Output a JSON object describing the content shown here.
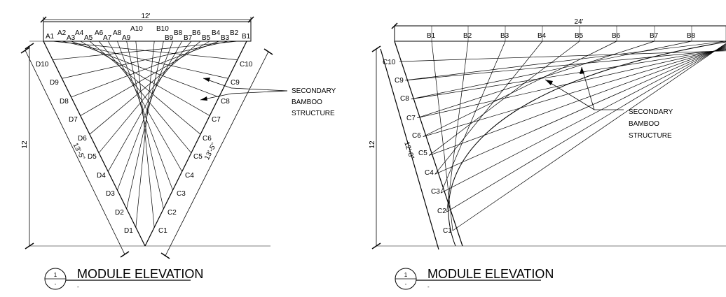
{
  "left": {
    "dim_top": "12'",
    "dim_side": "12",
    "dim_diag_left": "13'-5\"",
    "dim_diag_right": "13'-5\"",
    "a_labels": [
      "A1",
      "A2",
      "A3",
      "A4",
      "A5",
      "A6",
      "A7",
      "A8",
      "A9",
      "A10"
    ],
    "b_labels": [
      "B1",
      "B2",
      "B3",
      "B4",
      "B5",
      "B6",
      "B7",
      "B8",
      "B9",
      "B10"
    ],
    "c_labels": [
      "C1",
      "C2",
      "C3",
      "C4",
      "C5",
      "C6",
      "C7",
      "C8",
      "C9",
      "C10"
    ],
    "d_labels": [
      "D1",
      "D2",
      "D3",
      "D4",
      "D5",
      "D6",
      "D7",
      "D8",
      "D9",
      "D10"
    ],
    "callout": [
      "SECONDARY",
      "BAMBOO",
      "STRUCTURE"
    ],
    "title": "MODULE ELEVATION",
    "title_num": "1",
    "title_sub": "-",
    "title_scale": "-"
  },
  "right": {
    "dim_top": "24'",
    "dim_side": "12",
    "dim_diag": "12'-8\"",
    "b_labels": [
      "B1",
      "B2",
      "B3",
      "B4",
      "B5",
      "B6",
      "B7",
      "B8"
    ],
    "c_labels": [
      "C1",
      "C2",
      "C3",
      "C4",
      "C5",
      "C6",
      "C7",
      "C8",
      "C9",
      "C10"
    ],
    "callout": [
      "SECONDARY",
      "BAMBOO",
      "STRUCTURE"
    ],
    "title": "MODULE ELEVATION",
    "title_num": "1",
    "title_sub": "-",
    "title_scale": "-"
  }
}
